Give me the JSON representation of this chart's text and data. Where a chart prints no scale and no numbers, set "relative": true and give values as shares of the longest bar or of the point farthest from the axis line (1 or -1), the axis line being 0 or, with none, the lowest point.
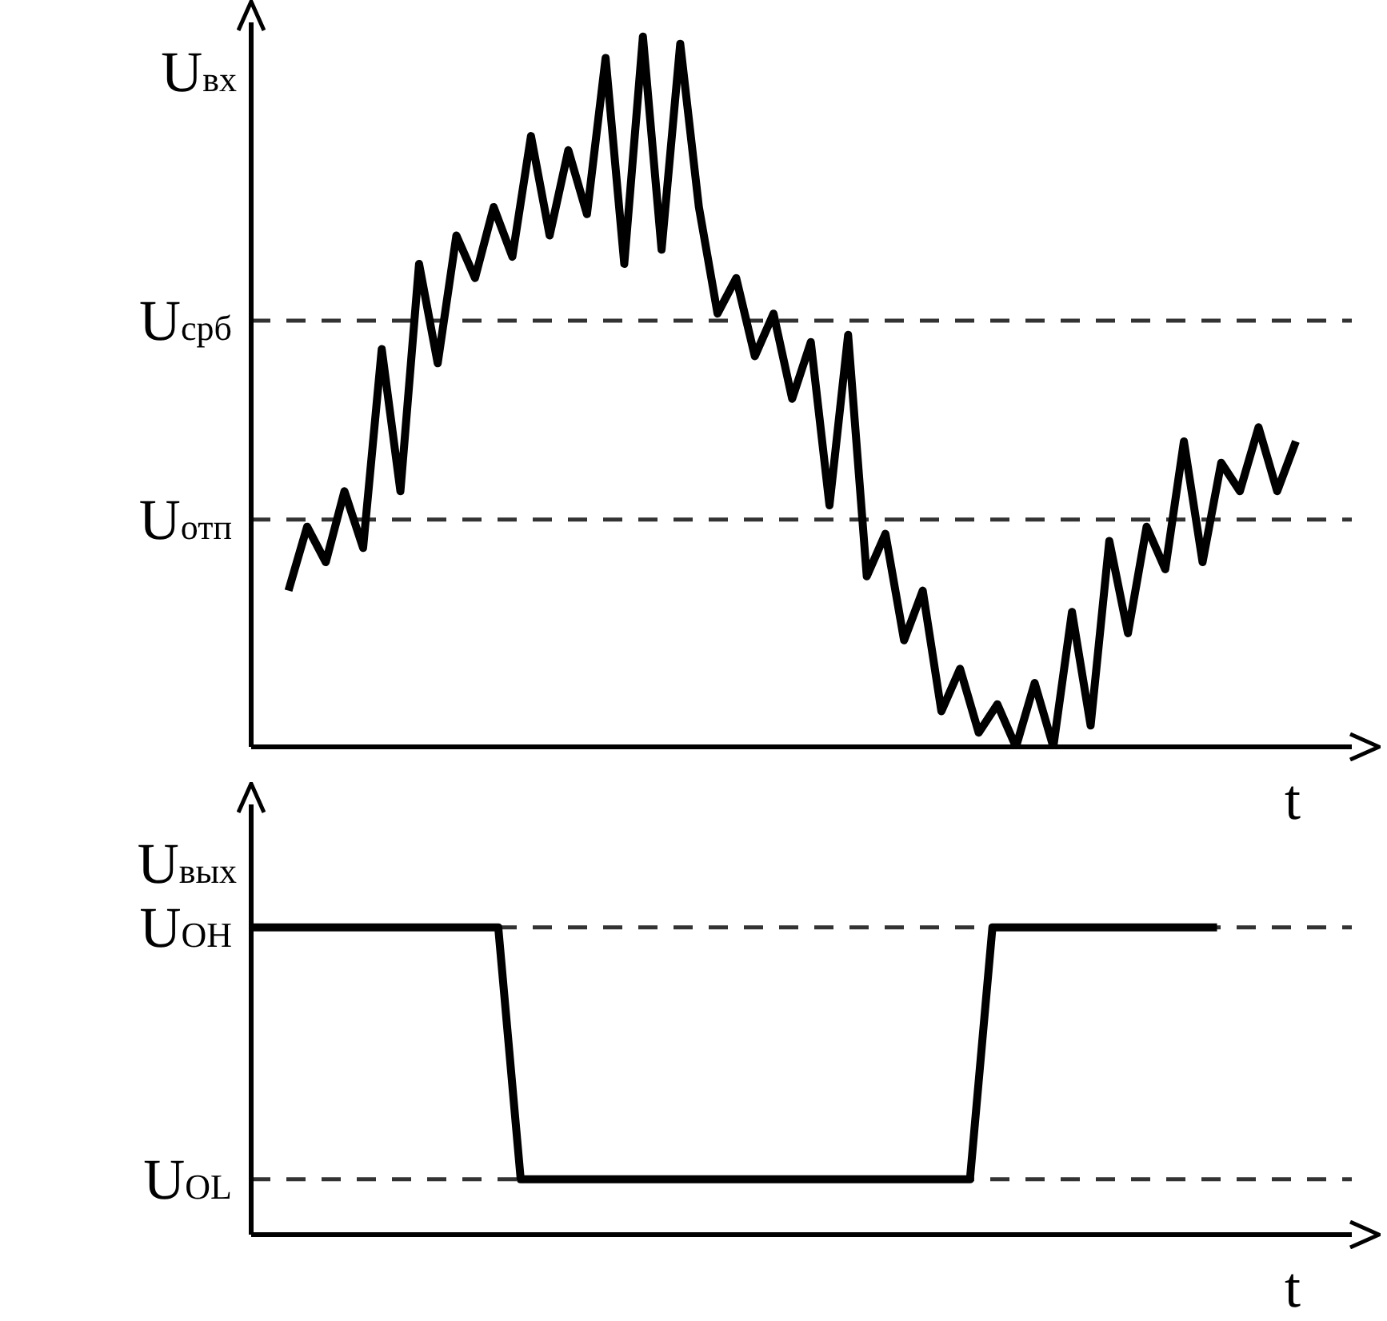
{
  "chart_data": [
    {
      "type": "line",
      "ylabel": "U$_{вх}$",
      "xlabel": "t",
      "relative": true,
      "grid": false,
      "legend": false,
      "marker": "none",
      "line_style": "solid",
      "categories": [
        null,
        null,
        null,
        null,
        null,
        null,
        null,
        null,
        null,
        null,
        null,
        null,
        null,
        null,
        null,
        null,
        null,
        null,
        null,
        null,
        null,
        null,
        null,
        null,
        null,
        null,
        null,
        null,
        null,
        null,
        null,
        null,
        null,
        null,
        null,
        null,
        null,
        null,
        null,
        null,
        null,
        null,
        null,
        null,
        null,
        null,
        null,
        null,
        null,
        null,
        null,
        null,
        null,
        null,
        null,
        null,
        null,
        null,
        null,
        null
      ],
      "series": [
        {
          "color": "#000000",
          "values": [
            null,
            null,
            0.22,
            0.31,
            0.26,
            0.36,
            0.28,
            0.56,
            0.36,
            0.68,
            0.54,
            0.72,
            0.66,
            0.76,
            0.69,
            0.86,
            0.72,
            0.84,
            0.75,
            0.97,
            0.68,
            1,
            0.7,
            0.99,
            0.76,
            0.61,
            0.66,
            0.55,
            0.61,
            0.49,
            0.57,
            0.34,
            0.58,
            0.24,
            0.3,
            0.15,
            0.22,
            0.05,
            0.11,
            0.02,
            0.06,
            0,
            0.09,
            0,
            0.19,
            0.03,
            0.29,
            0.16,
            0.31,
            0.25,
            0.43,
            0.26,
            0.4,
            0.36,
            0.45,
            0.36,
            0.43,
            null,
            null,
            null
          ]
        }
      ],
      "ref_lines": [
        {
          "axis": "y",
          "value": 0.6,
          "label": "U$_{срб}$",
          "color": "#333333",
          "line_style": "dashed"
        },
        {
          "axis": "y",
          "value": 0.32,
          "label": "U$_{отп}$",
          "color": "#333333",
          "line_style": "dashed"
        }
      ]
    },
    {
      "type": "line",
      "ylabel": "U$_{вых}$",
      "xlabel": "t",
      "relative": true,
      "grid": false,
      "legend": false,
      "marker": "none",
      "line_style": "solid",
      "categories": [
        null,
        null,
        null,
        null,
        null,
        null,
        null,
        null,
        null,
        null,
        null,
        null,
        null,
        null,
        null,
        null,
        null,
        null,
        null,
        null,
        null,
        null,
        null,
        null,
        null,
        null,
        null,
        null,
        null,
        null,
        null,
        null,
        null,
        null,
        null,
        null,
        null,
        null,
        null,
        null,
        null,
        null,
        null,
        null,
        null,
        null,
        null,
        null,
        null,
        null
      ],
      "series": [
        {
          "color": "#000000",
          "values": [
            1,
            1,
            1,
            1,
            1,
            1,
            1,
            1,
            1,
            1,
            1,
            1,
            0.18,
            0.18,
            0.18,
            0.18,
            0.18,
            0.18,
            0.18,
            0.18,
            0.18,
            0.18,
            0.18,
            0.18,
            0.18,
            0.18,
            0.18,
            0.18,
            0.18,
            0.18,
            0.18,
            0.18,
            0.18,
            1,
            1,
            1,
            1,
            1,
            1,
            1,
            1,
            1,
            1,
            1,
            null,
            null,
            null,
            null,
            null,
            null
          ]
        }
      ],
      "ref_lines": [
        {
          "axis": "y",
          "value": 1,
          "label": "U$_{OH}$",
          "color": "#333333",
          "line_style": "dashed"
        },
        {
          "axis": "y",
          "value": 0.18,
          "label": "U$_{OL}$",
          "color": "#333333",
          "line_style": "dashed"
        }
      ]
    }
  ]
}
